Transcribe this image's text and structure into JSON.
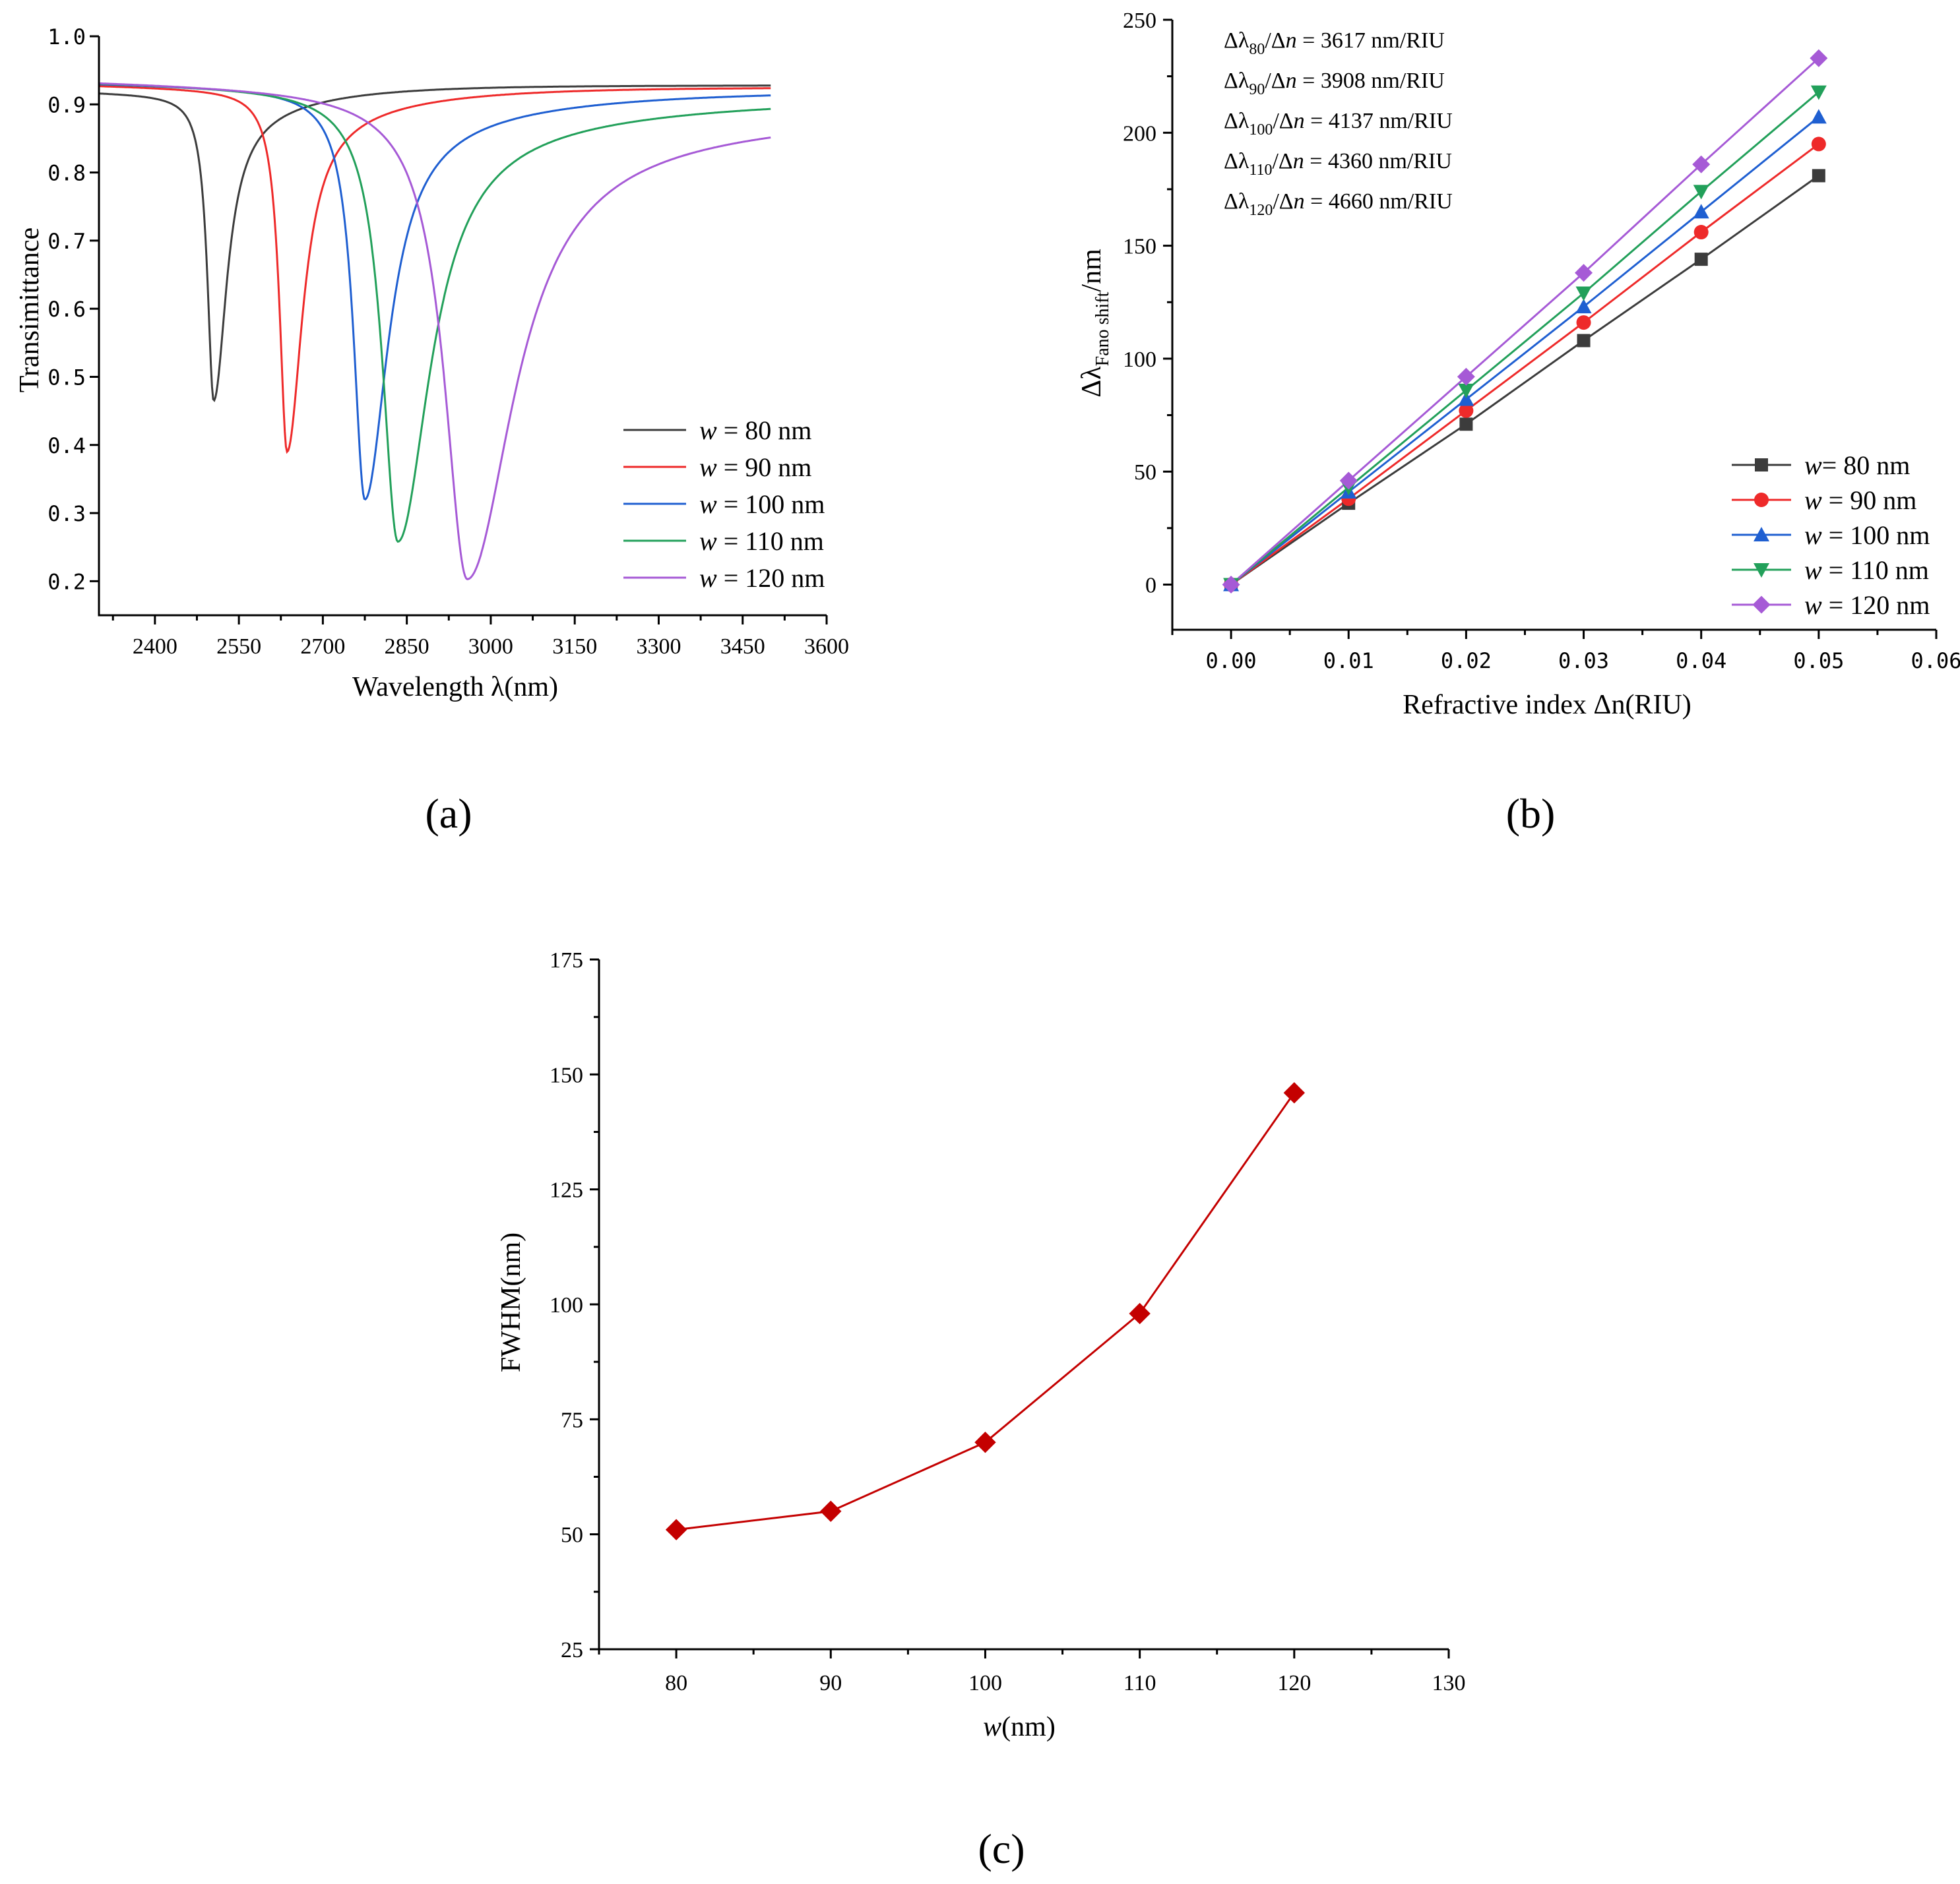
{
  "chart_data": [
    {
      "id": "a",
      "type": "line",
      "panel_label": "(a)",
      "xlabel": "Wavelength λ(nm)",
      "ylabel": "Transimittance",
      "xlim": [
        2300,
        3600
      ],
      "ylim": [
        0.15,
        1.0
      ],
      "xticks": [
        "2400",
        "2550",
        "2700",
        "2850",
        "3000",
        "3150",
        "3300",
        "3450",
        "3600"
      ],
      "yticks": [
        "0.2",
        "0.3",
        "0.4",
        "0.5",
        "0.6",
        "0.7",
        "0.8",
        "0.9",
        "1.0"
      ],
      "legend_position": "bottom-right",
      "series": [
        {
          "name": "w = 80 nm",
          "var": "w",
          "rest": " = 80 nm",
          "color": "#3c3c3c",
          "dip_x": 2505,
          "dip_y": 0.465,
          "left_level": 0.918,
          "right_level": 0.928,
          "width": 25
        },
        {
          "name": "w = 90 nm",
          "var": "w",
          "rest": " = 90 nm",
          "color": "#ee2a2a",
          "dip_x": 2636,
          "dip_y": 0.39,
          "left_level": 0.928,
          "right_level": 0.925,
          "width": 30
        },
        {
          "name": "w = 100 nm",
          "var": "w",
          "rest": " = 100 nm",
          "color": "#1f5fd1",
          "dip_x": 2775,
          "dip_y": 0.32,
          "left_level": 0.931,
          "right_level": 0.92,
          "width": 45
        },
        {
          "name": "w = 110 nm",
          "var": "w",
          "rest": " = 110 nm",
          "color": "#22a05a",
          "dip_x": 2834,
          "dip_y": 0.258,
          "left_level": 0.933,
          "right_level": 0.91,
          "width": 62
        },
        {
          "name": "w = 120 nm",
          "var": "w",
          "rest": " = 120 nm",
          "color": "#a65ad6",
          "dip_x": 2958,
          "dip_y": 0.203,
          "left_level": 0.935,
          "right_level": 0.895,
          "width": 90
        }
      ]
    },
    {
      "id": "b",
      "type": "line",
      "panel_label": "(b)",
      "xlabel": "Refractive index Δn(RIU)",
      "ylabel_main": "Δλ",
      "ylabel_sub": "Fano shift",
      "ylabel_tail": "/nm",
      "xlim": [
        -0.005,
        0.06
      ],
      "ylim": [
        -20,
        250
      ],
      "xticks": [
        "0.00",
        "0.01",
        "0.02",
        "0.03",
        "0.04",
        "0.05",
        "0.06"
      ],
      "yticks": [
        "0",
        "50",
        "100",
        "150",
        "200",
        "250"
      ],
      "x": [
        0,
        0.01,
        0.02,
        0.03,
        0.04,
        0.05
      ],
      "legend_position": "bottom-right",
      "annotations": [
        {
          "sub": "80",
          "value": " = 3617 nm/RIU"
        },
        {
          "sub": "90",
          "value": " = 3908 nm/RIU"
        },
        {
          "sub": "100",
          "value": " = 4137 nm/RIU"
        },
        {
          "sub": "110",
          "value": " = 4360 nm/RIU"
        },
        {
          "sub": "120",
          "value": " = 4660 nm/RIU"
        }
      ],
      "annotation_main": "Δλ",
      "annotation_mid": "/Δ",
      "annotation_n": "n",
      "series": [
        {
          "name": "w= 80 nm",
          "var": "w",
          "rest": "= 80 nm",
          "color": "#3c3c3c",
          "marker": "square",
          "values": [
            0,
            36,
            71,
            108,
            144,
            181
          ]
        },
        {
          "name": "w = 90 nm",
          "var": "w",
          "rest": " = 90 nm",
          "color": "#ee2a2a",
          "marker": "circle",
          "values": [
            0,
            38,
            77,
            116,
            156,
            195
          ]
        },
        {
          "name": "w = 100 nm",
          "var": "w",
          "rest": " = 100 nm",
          "color": "#1f5fd1",
          "marker": "triangle-up",
          "values": [
            0,
            41,
            82,
            123,
            165,
            207
          ]
        },
        {
          "name": "w = 110 nm",
          "var": "w",
          "rest": " = 110 nm",
          "color": "#22a05a",
          "marker": "triangle-down",
          "values": [
            0,
            43,
            86,
            129,
            174,
            218
          ]
        },
        {
          "name": "w = 120 nm",
          "var": "w",
          "rest": " = 120 nm",
          "color": "#a65ad6",
          "marker": "diamond",
          "values": [
            0,
            46,
            92,
            138,
            186,
            233
          ]
        }
      ]
    },
    {
      "id": "c",
      "type": "line",
      "panel_label": "(c)",
      "xlabel_var": "w",
      "xlabel_rest": "(nm)",
      "ylabel": "FWHM(nm)",
      "xlim": [
        75,
        130
      ],
      "ylim": [
        25,
        175
      ],
      "xticks": [
        "80",
        "90",
        "100",
        "110",
        "120",
        "130"
      ],
      "yticks": [
        "25",
        "50",
        "75",
        "100",
        "125",
        "150",
        "175"
      ],
      "series": [
        {
          "name": "FWHM",
          "color": "#c40000",
          "marker": "diamond",
          "x": [
            80,
            90,
            100,
            110,
            120
          ],
          "values": [
            51,
            55,
            70,
            98,
            146
          ]
        }
      ]
    }
  ]
}
